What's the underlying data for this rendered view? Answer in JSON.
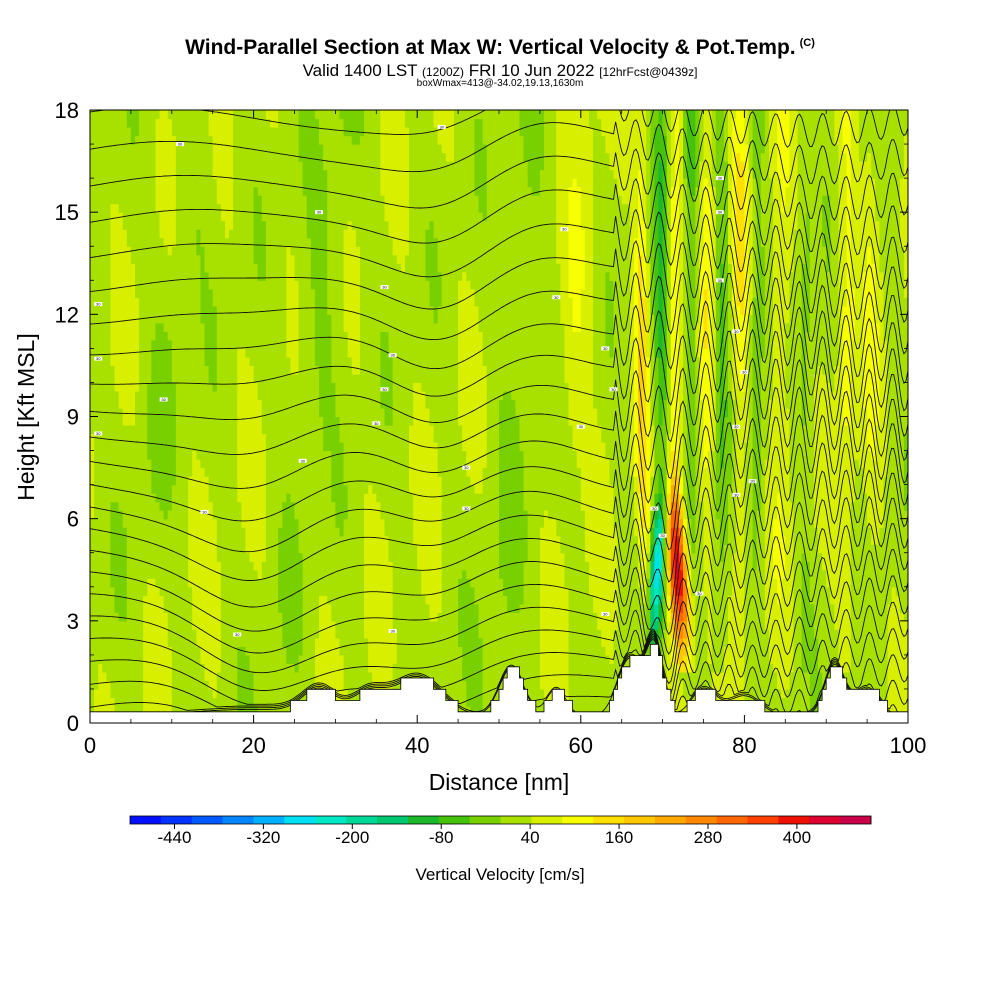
{
  "header": {
    "title": "Wind-Parallel Section at Max W: Vertical Velocity & Pot.Temp.",
    "title_suffix": "(C)",
    "valid_prefix": "Valid 1400 LST",
    "valid_utc": "(1200Z)",
    "valid_date": "FRI 10 Jun 2022",
    "forecast_info": "[12hrFcst@0439z]",
    "box_info": "boxWmax=413@-34.02,19.13,1630m"
  },
  "chart_data": {
    "type": "heatmap",
    "xlabel": "Distance [nm]",
    "ylabel": "Height [Kft MSL]",
    "xlim": [
      0,
      100
    ],
    "ylim": [
      0,
      18
    ],
    "x_ticks": [
      0,
      20,
      40,
      60,
      80,
      100
    ],
    "y_ticks": [
      0,
      3,
      6,
      9,
      12,
      15,
      18
    ],
    "colorbar": {
      "label": "Vertical Velocity [cm/s]",
      "tick_labels": [
        "-440",
        "-320",
        "-200",
        "-80",
        "40",
        "160",
        "280",
        "400"
      ],
      "tick_values": [
        -440,
        -320,
        -200,
        -80,
        40,
        160,
        280,
        400
      ],
      "range": [
        -500,
        500
      ],
      "colors": [
        "#0010ff",
        "#0033ff",
        "#0059ff",
        "#0086ff",
        "#00b0ff",
        "#00e0f2",
        "#00e8c4",
        "#00d898",
        "#00c870",
        "#1cb82c",
        "#44c20c",
        "#78d000",
        "#a8e000",
        "#d8f000",
        "#f8ff00",
        "#ffe000",
        "#ffc800",
        "#ffa800",
        "#ff8800",
        "#ff6600",
        "#ff4000",
        "#ee1000",
        "#dd0030",
        "#c80048"
      ]
    },
    "updraft_core": {
      "x": 71.5,
      "y_from": 2.5,
      "y_to": 6.5,
      "peak_w": 413
    },
    "downdraft_core": {
      "x": 69.5,
      "y_from": 3.5,
      "y_to": 6.0,
      "min_w": -300
    },
    "wave_columns_x": [
      73,
      76,
      79,
      82,
      86,
      92
    ],
    "contour_label": "30"
  }
}
